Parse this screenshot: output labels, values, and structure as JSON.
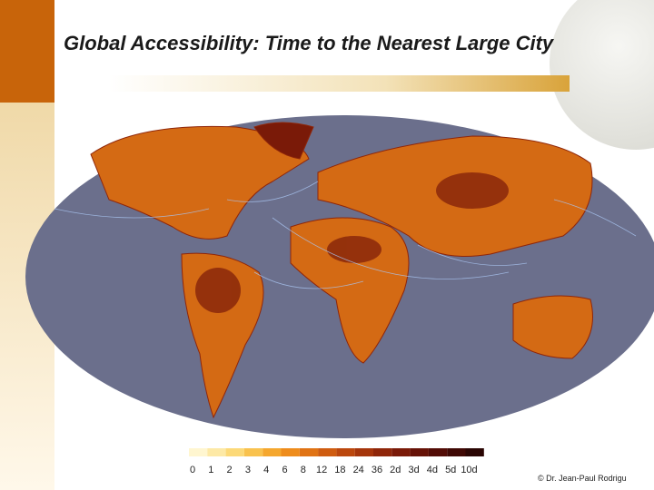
{
  "slide": {
    "title": "Global Accessibility: Time to the Nearest Large City",
    "legend": {
      "labels": [
        "0",
        "1",
        "2",
        "3",
        "4",
        "6",
        "8",
        "12",
        "18",
        "24",
        "36",
        "2d",
        "3d",
        "4d",
        "5d",
        "10d"
      ],
      "colors": [
        "#fff6d0",
        "#fde9a6",
        "#fcd978",
        "#f9c24e",
        "#f5a72e",
        "#ee8c1c",
        "#e07314",
        "#cf5c10",
        "#bb470d",
        "#a5350b",
        "#8f2609",
        "#7a1a08",
        "#661207",
        "#520c06",
        "#3f0804",
        "#2a0503"
      ]
    },
    "credit": "© Dr. Jean-Paul Rodrigu"
  }
}
